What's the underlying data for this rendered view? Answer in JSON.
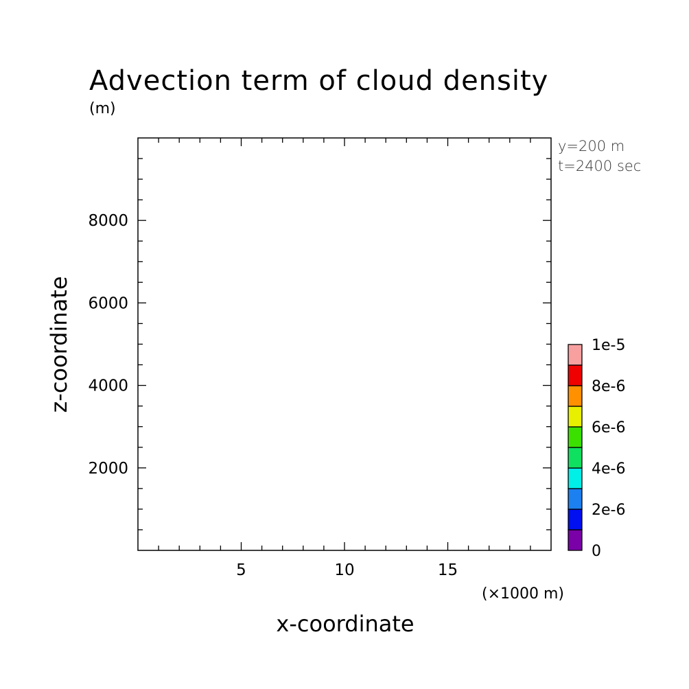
{
  "chart_data": {
    "type": "heatmap",
    "title": "Advection term of cloud density",
    "subtitle": "(m)",
    "annotation_lines": [
      "y=200 m",
      "t=2400 sec"
    ],
    "xlabel": "x-coordinate",
    "x_unit": "(×1000 m)",
    "ylabel": "z-coordinate",
    "xlim": [
      0,
      20
    ],
    "ylim": [
      0,
      10000
    ],
    "x_ticks": [
      5,
      10,
      15
    ],
    "x_tick_labels": [
      "5",
      "10",
      "15"
    ],
    "y_ticks": [
      2000,
      4000,
      6000,
      8000
    ],
    "y_tick_labels": [
      "2000",
      "4000",
      "6000",
      "8000"
    ],
    "field": [],
    "colorbar": {
      "levels": [
        0,
        1e-06,
        2e-06,
        3e-06,
        4e-06,
        5e-06,
        6e-06,
        7e-06,
        8e-06,
        9e-06,
        1e-05
      ],
      "colors": [
        "#7a00a8",
        "#0010f0",
        "#1c80f0",
        "#00f0e8",
        "#10e060",
        "#3ce000",
        "#e8f000",
        "#ff9000",
        "#f00000",
        "#f8a0a0"
      ],
      "tick_values": [
        0,
        2e-06,
        4e-06,
        6e-06,
        8e-06,
        1e-05
      ],
      "tick_labels": [
        "0",
        "2e-6",
        "4e-6",
        "6e-6",
        "8e-6",
        "1e-5"
      ]
    }
  }
}
